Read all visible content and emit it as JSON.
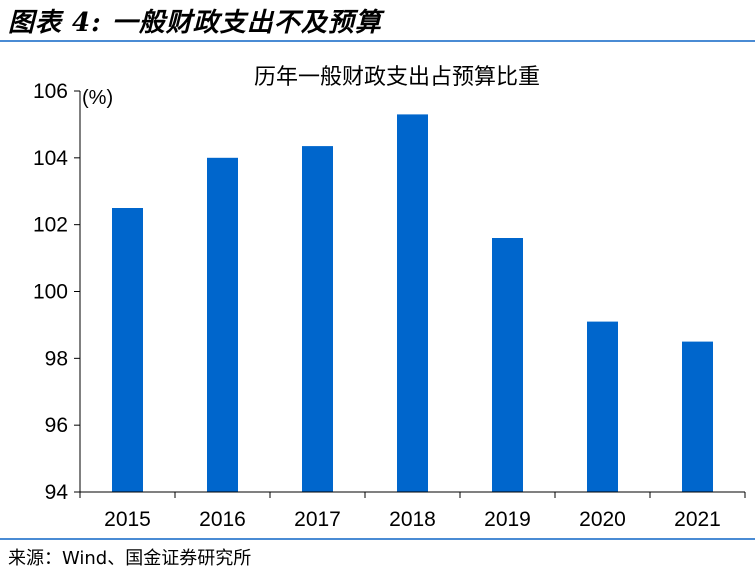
{
  "figure": {
    "label": "图表 4:  一般财政支出不及预算",
    "source": "来源：Wind、国金证券研究所"
  },
  "colors": {
    "bar": "#0066cc",
    "rule": "#4a8bd4",
    "axis": "#000000"
  },
  "chart_data": {
    "type": "bar",
    "title": "历年一般财政支出占预算比重",
    "unit_label": "(%)",
    "categories": [
      "2015",
      "2016",
      "2017",
      "2018",
      "2019",
      "2020",
      "2021"
    ],
    "values": [
      102.5,
      104.0,
      104.35,
      105.3,
      101.6,
      99.1,
      98.5
    ],
    "ylim": [
      94,
      106
    ],
    "yticks": [
      94,
      96,
      98,
      100,
      102,
      104,
      106
    ],
    "grid": false,
    "legend": "none"
  }
}
